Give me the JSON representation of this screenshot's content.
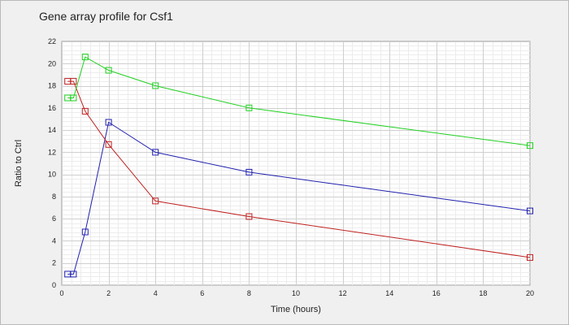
{
  "chart_data": {
    "type": "line",
    "title": "Gene array profile for Csf1",
    "xlabel": "Time (hours)",
    "ylabel": "Ratio to Ctrl",
    "xlim": [
      0,
      20
    ],
    "ylim": [
      0,
      22
    ],
    "x_ticks": [
      0,
      2,
      4,
      6,
      8,
      10,
      12,
      14,
      16,
      18,
      20
    ],
    "y_ticks": [
      0,
      2,
      4,
      6,
      8,
      10,
      12,
      14,
      16,
      18,
      20,
      22
    ],
    "grid": true,
    "legend": "none",
    "marker": "square",
    "series": [
      {
        "color": "#2020b0",
        "x": [
          0.25,
          0.5,
          1,
          2,
          4,
          8,
          20
        ],
        "values": [
          1.0,
          1.0,
          4.8,
          14.7,
          12.0,
          10.2,
          6.7
        ]
      },
      {
        "color": "#c02020",
        "x": [
          0.25,
          0.5,
          1,
          2,
          4,
          8,
          20
        ],
        "values": [
          18.4,
          18.4,
          15.7,
          12.7,
          7.6,
          6.2,
          2.5
        ]
      },
      {
        "color": "#20d020",
        "x": [
          0.25,
          0.5,
          1,
          2,
          4,
          8,
          20
        ],
        "values": [
          16.9,
          16.9,
          20.6,
          19.4,
          18.0,
          16.0,
          12.6
        ]
      }
    ]
  }
}
